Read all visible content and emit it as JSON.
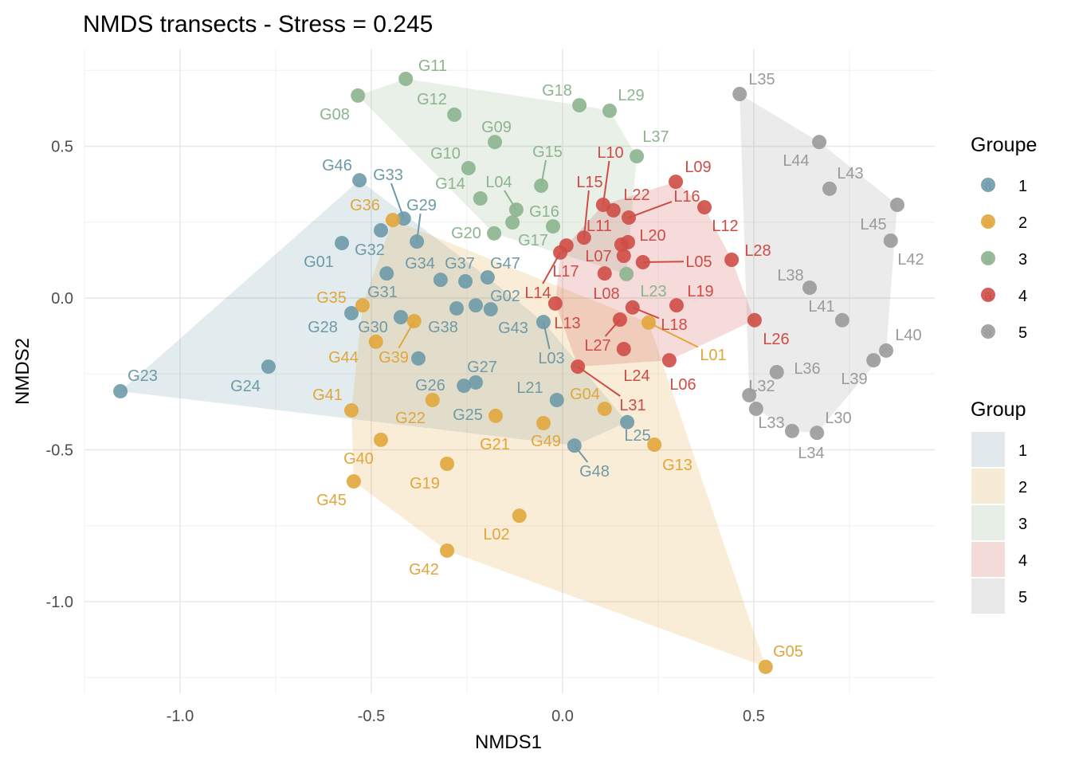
{
  "chart_data": {
    "type": "scatter",
    "title": "NMDS transects - Stress = 0.245",
    "xlabel": "NMDS1",
    "ylabel": "NMDS2",
    "xlim": [
      -1.25,
      0.973
    ],
    "ylim": [
      -1.302,
      0.819
    ],
    "x_ticks": [
      -1.0,
      -0.5,
      0.0,
      0.5
    ],
    "x_tick_labels": [
      "-1.0",
      "-0.5",
      "0.0",
      "0.5"
    ],
    "y_ticks": [
      0.5,
      0.0,
      -0.5,
      -1.0
    ],
    "y_tick_labels": [
      "0.5",
      "0.0",
      "-0.5",
      "-1.0"
    ],
    "grid": true,
    "hulls": "convex hull per group, filled",
    "legend_placement": "right",
    "legends": [
      {
        "title": "Groupe",
        "kind": "point",
        "entries": [
          "1",
          "2",
          "3",
          "4",
          "5"
        ]
      },
      {
        "title": "Group",
        "kind": "fill",
        "entries": [
          "1",
          "2",
          "3",
          "4",
          "5"
        ]
      }
    ],
    "group_colors": {
      "1": "#6E9AA8",
      "2": "#E1A63B",
      "3": "#8CB48E",
      "4": "#CF4C46",
      "5": "#9A9A9A"
    },
    "series": [
      {
        "name": "1",
        "points": [
          {
            "label": "G23",
            "x": -1.156,
            "y": -0.307
          },
          {
            "label": "G24",
            "x": -0.769,
            "y": -0.226
          },
          {
            "label": "G46",
            "x": -0.531,
            "y": 0.388
          },
          {
            "label": "G33",
            "x": -0.415,
            "y": 0.262
          },
          {
            "label": "G32",
            "x": -0.475,
            "y": 0.223
          },
          {
            "label": "G01",
            "x": -0.577,
            "y": 0.181
          },
          {
            "label": "G29",
            "x": -0.381,
            "y": 0.186
          },
          {
            "label": "G31",
            "x": -0.46,
            "y": 0.081
          },
          {
            "label": "G34",
            "x": -0.319,
            "y": 0.06
          },
          {
            "label": "G37",
            "x": -0.254,
            "y": 0.055
          },
          {
            "label": "G47",
            "x": -0.196,
            "y": 0.068
          },
          {
            "label": "G28",
            "x": -0.552,
            "y": -0.05
          },
          {
            "label": "G30",
            "x": -0.423,
            "y": -0.063
          },
          {
            "label": "G38",
            "x": -0.277,
            "y": -0.034
          },
          {
            "label": "G02",
            "x": -0.227,
            "y": -0.024
          },
          {
            "label": "G43",
            "x": -0.188,
            "y": -0.037
          },
          {
            "label": "L03",
            "x": -0.05,
            "y": -0.079
          },
          {
            "label": "G25",
            "x": -0.377,
            "y": -0.199
          },
          {
            "label": "G26",
            "x": -0.258,
            "y": -0.289
          },
          {
            "label": "G27",
            "x": -0.227,
            "y": -0.278
          },
          {
            "label": "L21",
            "x": -0.015,
            "y": -0.336
          },
          {
            "label": "G48",
            "x": 0.031,
            "y": -0.486
          },
          {
            "label": "L25",
            "x": 0.169,
            "y": -0.409
          }
        ]
      },
      {
        "name": "2",
        "points": [
          {
            "label": "G36",
            "x": -0.444,
            "y": 0.257
          },
          {
            "label": "G35",
            "x": -0.523,
            "y": -0.024
          },
          {
            "label": "G39",
            "x": -0.388,
            "y": -0.076
          },
          {
            "label": "G44",
            "x": -0.488,
            "y": -0.144
          },
          {
            "label": "G41",
            "x": -0.552,
            "y": -0.37
          },
          {
            "label": "G22",
            "x": -0.34,
            "y": -0.336
          },
          {
            "label": "G40",
            "x": -0.475,
            "y": -0.467
          },
          {
            "label": "G45",
            "x": -0.546,
            "y": -0.604
          },
          {
            "label": "G19",
            "x": -0.302,
            "y": -0.546
          },
          {
            "label": "G42",
            "x": -0.302,
            "y": -0.832
          },
          {
            "label": "L02",
            "x": -0.113,
            "y": -0.717
          },
          {
            "label": "G21",
            "x": -0.175,
            "y": -0.388
          },
          {
            "label": "G49",
            "x": -0.05,
            "y": -0.412
          },
          {
            "label": "G04",
            "x": 0.11,
            "y": -0.365
          },
          {
            "label": "G13",
            "x": 0.24,
            "y": -0.483
          },
          {
            "label": "G05",
            "x": 0.531,
            "y": -1.215
          },
          {
            "label": "L01",
            "x": 0.225,
            "y": -0.081
          }
        ]
      },
      {
        "name": "3",
        "points": [
          {
            "label": "G11",
            "x": -0.41,
            "y": 0.722
          },
          {
            "label": "G08",
            "x": -0.535,
            "y": 0.667
          },
          {
            "label": "G12",
            "x": -0.283,
            "y": 0.604
          },
          {
            "label": "G18",
            "x": 0.044,
            "y": 0.635
          },
          {
            "label": "L29",
            "x": 0.123,
            "y": 0.617
          },
          {
            "label": "G09",
            "x": -0.177,
            "y": 0.514
          },
          {
            "label": "G10",
            "x": -0.246,
            "y": 0.428
          },
          {
            "label": "L37",
            "x": 0.194,
            "y": 0.467
          },
          {
            "label": "G15",
            "x": -0.056,
            "y": 0.37
          },
          {
            "label": "G14",
            "x": -0.215,
            "y": 0.328
          },
          {
            "label": "L04",
            "x": -0.121,
            "y": 0.291
          },
          {
            "label": "G16",
            "x": -0.025,
            "y": 0.236
          },
          {
            "label": "G17",
            "x": -0.131,
            "y": 0.249
          },
          {
            "label": "G20",
            "x": -0.179,
            "y": 0.213
          },
          {
            "label": "L23",
            "x": 0.167,
            "y": 0.079
          }
        ]
      },
      {
        "name": "4",
        "points": [
          {
            "label": "L09",
            "x": 0.296,
            "y": 0.383
          },
          {
            "label": "L12",
            "x": 0.371,
            "y": 0.299
          },
          {
            "label": "L10",
            "x": 0.106,
            "y": 0.307
          },
          {
            "label": "L22",
            "x": 0.133,
            "y": 0.289
          },
          {
            "label": "L16",
            "x": 0.173,
            "y": 0.265
          },
          {
            "label": "L15",
            "x": 0.056,
            "y": 0.199
          },
          {
            "label": "L17",
            "x": 0.01,
            "y": 0.173
          },
          {
            "label": "L14",
            "x": -0.006,
            "y": 0.15
          },
          {
            "label": "L20",
            "x": 0.171,
            "y": 0.184
          },
          {
            "label": "L11",
            "x": 0.154,
            "y": 0.176
          },
          {
            "label": "L07",
            "x": 0.16,
            "y": 0.139
          },
          {
            "label": "L05",
            "x": 0.21,
            "y": 0.118
          },
          {
            "label": "L28",
            "x": 0.442,
            "y": 0.126
          },
          {
            "label": "L08",
            "x": 0.11,
            "y": 0.081
          },
          {
            "label": "L13",
            "x": -0.019,
            "y": -0.018
          },
          {
            "label": "L19",
            "x": 0.298,
            "y": -0.024
          },
          {
            "label": "L18",
            "x": 0.183,
            "y": -0.031
          },
          {
            "label": "L27",
            "x": 0.15,
            "y": -0.071
          },
          {
            "label": "L26",
            "x": 0.502,
            "y": -0.073
          },
          {
            "label": "L24",
            "x": 0.16,
            "y": -0.168
          },
          {
            "label": "L06",
            "x": 0.279,
            "y": -0.205
          },
          {
            "label": "L31",
            "x": 0.04,
            "y": -0.226
          }
        ]
      },
      {
        "name": "5",
        "points": [
          {
            "label": "L35",
            "x": 0.463,
            "y": 0.672
          },
          {
            "label": "L44",
            "x": 0.671,
            "y": 0.514
          },
          {
            "label": "L43",
            "x": 0.698,
            "y": 0.36
          },
          {
            "label": "L45",
            "x": 0.875,
            "y": 0.307
          },
          {
            "label": "L42",
            "x": 0.858,
            "y": 0.189
          },
          {
            "label": "L38",
            "x": 0.646,
            "y": 0.034
          },
          {
            "label": "L41",
            "x": 0.731,
            "y": -0.073
          },
          {
            "label": "L40",
            "x": 0.846,
            "y": -0.173
          },
          {
            "label": "L39",
            "x": 0.813,
            "y": -0.205
          },
          {
            "label": "L36",
            "x": 0.56,
            "y": -0.244
          },
          {
            "label": "L32",
            "x": 0.488,
            "y": -0.32
          },
          {
            "label": "L33",
            "x": 0.506,
            "y": -0.365
          },
          {
            "label": "L34",
            "x": 0.6,
            "y": -0.438
          },
          {
            "label": "L30",
            "x": 0.665,
            "y": -0.444
          }
        ]
      }
    ]
  },
  "legend_key_glyph": "a"
}
